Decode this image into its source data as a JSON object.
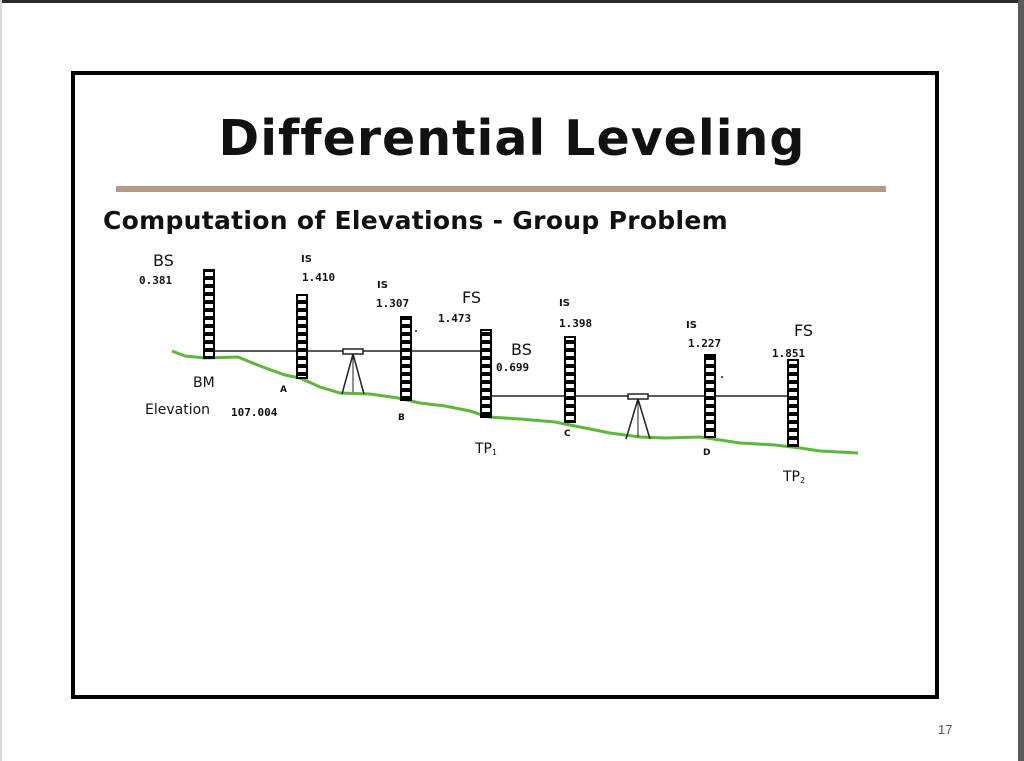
{
  "slide": {
    "title": "Differential Leveling",
    "subtitle": "Computation of Elevations - Group Problem",
    "page_number": "17"
  },
  "benchmark": {
    "name": "BM",
    "elevation_label": "Elevation",
    "elevation_value": "107.004"
  },
  "readings": [
    {
      "type": "BS",
      "value": "0.381"
    },
    {
      "type": "IS",
      "value": "1.410"
    },
    {
      "type": "IS",
      "value": "1.307"
    },
    {
      "type": "FS",
      "value": "1.473"
    },
    {
      "type": "BS",
      "value": "0.699"
    },
    {
      "type": "IS",
      "value": "1.398"
    },
    {
      "type": "IS",
      "value": "1.227"
    },
    {
      "type": "FS",
      "value": "1.851"
    }
  ],
  "points": {
    "a": "A",
    "b": "B",
    "tp1": "TP",
    "tp1_sub": "1",
    "c": "C",
    "d": "D",
    "tp2": "TP",
    "tp2_sub": "2"
  },
  "colors": {
    "ground": "#5cb83a",
    "rule": "#b79a85",
    "frame": "#000000"
  }
}
